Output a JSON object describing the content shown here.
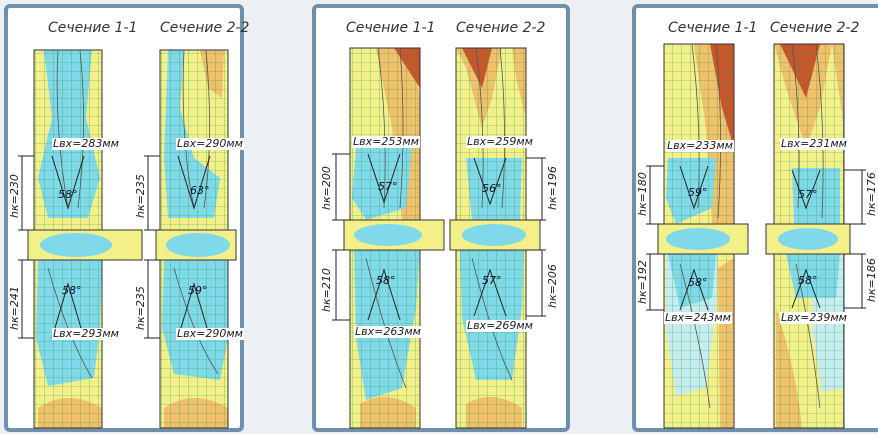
{
  "colors": {
    "frame": "#6f8faa",
    "yellow": "#f3f08a",
    "orange": "#f1c06a",
    "red": "#c9552b",
    "cyan": "#7fd9e8",
    "light_cyan": "#c5ecef",
    "grid": "#3a9c5a"
  },
  "panels": [
    {
      "section_1": "Сечение 1-1",
      "section_2": "Сечение 2-2",
      "upper_len_1": "Lвх=283мм",
      "upper_len_2": "Lвх=290мм",
      "lower_len_1": "Lвх=293мм",
      "lower_len_2": "Lвх=290мм",
      "upper_h_1": "hк=230",
      "upper_h_2": "hк=235",
      "lower_h_1": "hк=241",
      "lower_h_2": "hк=235",
      "upper_angle_1": "58°",
      "upper_angle_2": "63°",
      "lower_angle_1": "58°",
      "lower_angle_2": "59°"
    },
    {
      "section_1": "Сечение 1-1",
      "section_2": "Сечение 2-2",
      "upper_len_1": "Lвх=253мм",
      "upper_len_2": "Lвх=259мм",
      "lower_len_1": "Lвх=263мм",
      "lower_len_2": "Lвх=269мм",
      "upper_h_1": "hк=200",
      "upper_h_2": "hк=196",
      "lower_h_1": "hк=210",
      "lower_h_2": "hк=206",
      "upper_angle_1": "57°",
      "upper_angle_2": "56°",
      "lower_angle_1": "58°",
      "lower_angle_2": "57°"
    },
    {
      "section_1": "Сечение 1-1",
      "section_2": "Сечение 2-2",
      "upper_len_1": "Lвх=233мм",
      "upper_len_2": "Lвх=231мм",
      "lower_len_1": "Lвх=243мм",
      "lower_len_2": "Lвх=239мм",
      "upper_h_1": "hк=180",
      "upper_h_2": "hк=176",
      "lower_h_1": "hк=192",
      "lower_h_2": "hк=186",
      "upper_angle_1": "59°",
      "upper_angle_2": "57°",
      "lower_angle_1": "58°",
      "lower_angle_2": "58°"
    }
  ]
}
